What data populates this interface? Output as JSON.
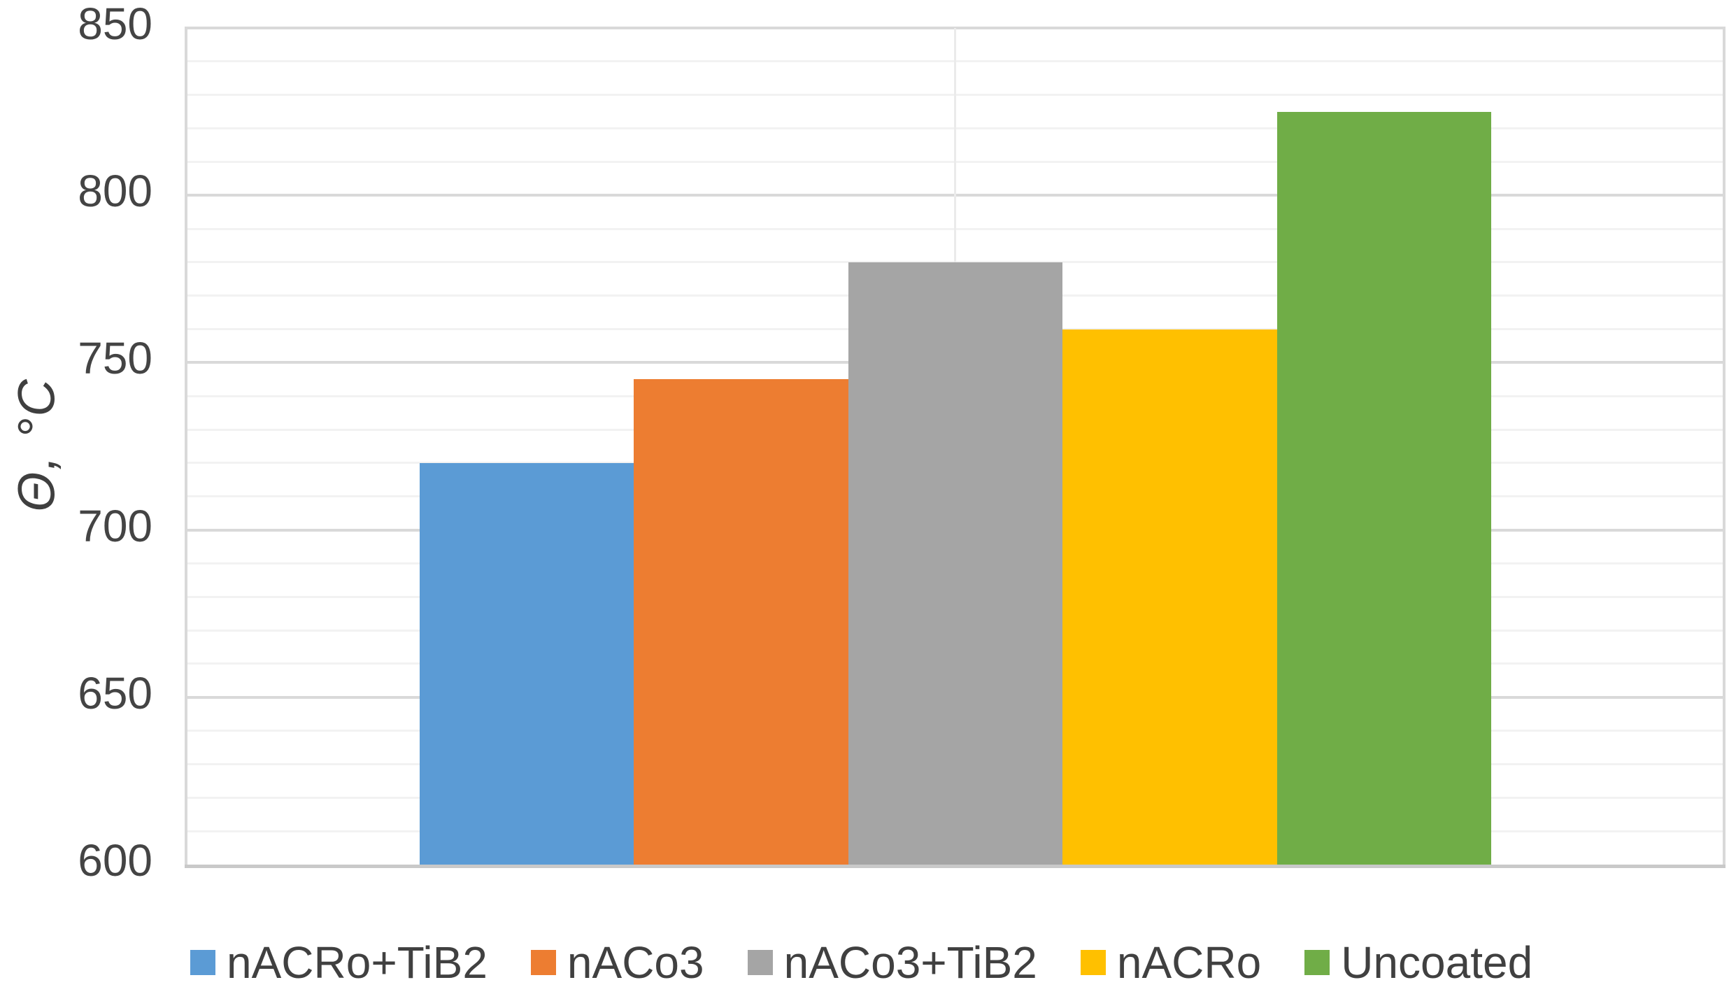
{
  "chart_data": {
    "type": "bar",
    "title": "",
    "xlabel": "",
    "ylabel": "Θ, °C",
    "categories": [
      "nACRo+TiB2",
      "nACo3",
      "nACo3+TiB2",
      "nACRo",
      "Uncoated"
    ],
    "values": [
      720,
      745,
      780,
      760,
      825
    ],
    "bar_colors": [
      "#5B9BD5",
      "#ED7D31",
      "#A5A5A5",
      "#FFC000",
      "#70AD47"
    ],
    "ylim": [
      600,
      850
    ],
    "y_major_unit": 50,
    "y_minor_unit": 10,
    "y_tick_labels": [
      "600",
      "650",
      "700",
      "750",
      "800",
      "850"
    ],
    "grid": "horizontal major and minor gridlines, single vertical gridline at plot center, plot border left/right/bottom",
    "legend_position": "bottom",
    "legend": [
      {
        "label": "nACRo+TiB2",
        "color": "#5B9BD5"
      },
      {
        "label": "nACo3",
        "color": "#ED7D31"
      },
      {
        "label": "nACo3+TiB2",
        "color": "#A5A5A5"
      },
      {
        "label": "nACRo",
        "color": "#FFC000"
      },
      {
        "label": "Uncoated",
        "color": "#70AD47"
      }
    ]
  }
}
